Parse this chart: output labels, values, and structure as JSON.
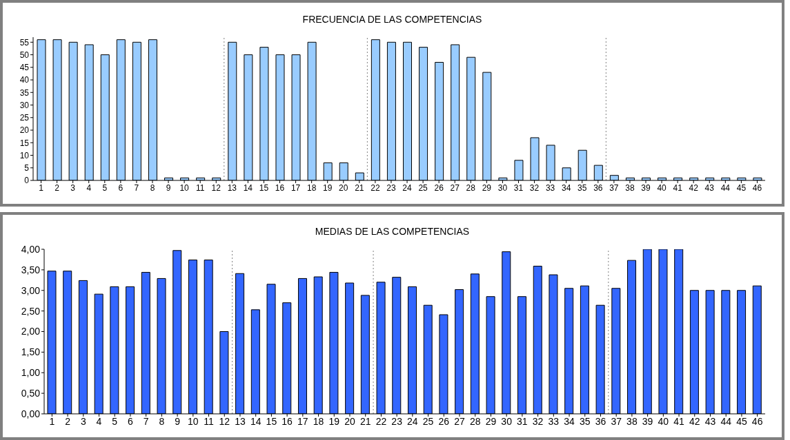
{
  "chart_data": [
    {
      "type": "bar",
      "title": "FRECUENCIA DE LAS COMPETENCIAS",
      "x": [
        1,
        2,
        3,
        4,
        5,
        6,
        7,
        8,
        9,
        10,
        11,
        12,
        13,
        14,
        15,
        16,
        17,
        18,
        19,
        20,
        21,
        22,
        23,
        24,
        25,
        26,
        27,
        28,
        29,
        30,
        31,
        32,
        33,
        34,
        35,
        36,
        37,
        38,
        39,
        40,
        41,
        42,
        43,
        44,
        45,
        46
      ],
      "values": [
        56,
        56,
        55,
        54,
        50,
        56,
        55,
        56,
        1,
        1,
        1,
        1,
        55,
        50,
        53,
        50,
        50,
        55,
        7,
        7,
        3,
        56,
        55,
        55,
        53,
        47,
        54,
        49,
        43,
        1,
        8,
        17,
        14,
        5,
        12,
        6,
        2,
        1,
        1,
        1,
        1,
        1,
        1,
        1,
        1,
        1
      ],
      "color": "#99ccff",
      "xlim": [
        0.5,
        46.5
      ],
      "xticks": [
        1,
        2,
        3,
        4,
        5,
        6,
        7,
        8,
        9,
        10,
        11,
        12,
        13,
        14,
        15,
        16,
        17,
        18,
        19,
        20,
        21,
        22,
        23,
        24,
        25,
        26,
        27,
        28,
        29,
        30,
        31,
        32,
        33,
        34,
        35,
        36,
        37,
        38,
        39,
        40,
        41,
        42,
        43,
        44,
        45,
        46
      ],
      "ylim": [
        0,
        57
      ],
      "yticks": [
        0,
        5,
        10,
        15,
        20,
        25,
        30,
        35,
        40,
        45,
        50,
        55
      ],
      "ref_lines": [
        {
          "axis": "x",
          "value": 12.5,
          "color": "#808080",
          "line_style": "dotted"
        },
        {
          "axis": "x",
          "value": 21.5,
          "color": "#808080",
          "line_style": "dotted"
        },
        {
          "axis": "x",
          "value": 36.5,
          "color": "#808080",
          "line_style": "dotted"
        }
      ],
      "grid": false,
      "legend": false
    },
    {
      "type": "bar",
      "title": "MEDIAS DE LAS COMPETENCIAS",
      "x": [
        1,
        2,
        3,
        4,
        5,
        6,
        7,
        8,
        9,
        10,
        11,
        12,
        13,
        14,
        15,
        16,
        17,
        18,
        19,
        20,
        21,
        22,
        23,
        24,
        25,
        26,
        27,
        28,
        29,
        30,
        31,
        32,
        33,
        34,
        35,
        36,
        37,
        38,
        39,
        40,
        41,
        42,
        43,
        44,
        45,
        46
      ],
      "values": [
        3.47,
        3.47,
        3.24,
        2.91,
        3.09,
        3.09,
        3.44,
        3.29,
        3.97,
        3.74,
        3.74,
        2.0,
        3.41,
        2.53,
        3.15,
        2.7,
        3.29,
        3.33,
        3.44,
        3.18,
        2.88,
        3.2,
        3.32,
        3.09,
        2.64,
        2.41,
        3.02,
        3.4,
        2.85,
        3.94,
        2.85,
        3.59,
        3.38,
        3.05,
        3.11,
        2.64,
        3.05,
        3.73,
        4.0,
        4.0,
        4.0,
        3.0,
        3.0,
        3.0,
        3.0,
        3.11
      ],
      "color": "#3366ff",
      "xlim": [
        0.5,
        46.5
      ],
      "xticks": [
        1,
        2,
        3,
        4,
        5,
        6,
        7,
        8,
        9,
        10,
        11,
        12,
        13,
        14,
        15,
        16,
        17,
        18,
        19,
        20,
        21,
        22,
        23,
        24,
        25,
        26,
        27,
        28,
        29,
        30,
        31,
        32,
        33,
        34,
        35,
        36,
        37,
        38,
        39,
        40,
        41,
        42,
        43,
        44,
        45,
        46
      ],
      "ylim": [
        0,
        4
      ],
      "yticks": [
        {
          "value": 0,
          "label": "0,00"
        },
        {
          "value": 0.5,
          "label": "0,50"
        },
        {
          "value": 1,
          "label": "1,00"
        },
        {
          "value": 1.5,
          "label": "1,50"
        },
        {
          "value": 2,
          "label": "2,00"
        },
        {
          "value": 2.5,
          "label": "2,50"
        },
        {
          "value": 3,
          "label": "3,00"
        },
        {
          "value": 3.5,
          "label": "3,50"
        },
        {
          "value": 4,
          "label": "4,00"
        }
      ],
      "ref_lines": [
        {
          "axis": "x",
          "value": 12.5,
          "color": "#808080",
          "line_style": "dotted"
        },
        {
          "axis": "x",
          "value": 21.5,
          "color": "#808080",
          "line_style": "dotted"
        },
        {
          "axis": "x",
          "value": 36.5,
          "color": "#808080",
          "line_style": "dotted"
        }
      ],
      "grid": false,
      "legend": false
    }
  ]
}
